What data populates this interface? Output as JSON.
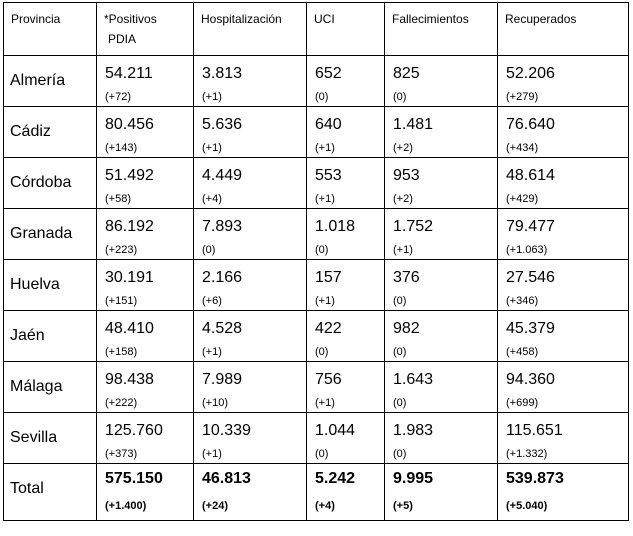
{
  "headers": {
    "provincia": "Provincia",
    "positivos_1": "*Positivos",
    "positivos_2": "PDIA",
    "hospitalizacion": "Hospitalización",
    "uci": "UCI",
    "fallecimientos": "Fallecimientos",
    "recuperados": "Recuperados"
  },
  "rows": [
    {
      "provincia": "Almería",
      "positivos": "54.211",
      "positivos_d": "(+72)",
      "hosp": "3.813",
      "hosp_d": "(+1)",
      "uci": "652",
      "uci_d": "(0)",
      "fall": "825",
      "fall_d": "(0)",
      "rec": "52.206",
      "rec_d": "(+279)"
    },
    {
      "provincia": "Cádiz",
      "positivos": "80.456",
      "positivos_d": "(+143)",
      "hosp": "5.636",
      "hosp_d": "(+1)",
      "uci": "640",
      "uci_d": "(+1)",
      "fall": "1.481",
      "fall_d": "(+2)",
      "rec": "76.640",
      "rec_d": "(+434)"
    },
    {
      "provincia": "Córdoba",
      "positivos": "51.492",
      "positivos_d": "(+58)",
      "hosp": "4.449",
      "hosp_d": "(+4)",
      "uci": "553",
      "uci_d": "(+1)",
      "fall": "953",
      "fall_d": "(+2)",
      "rec": "48.614",
      "rec_d": "(+429)"
    },
    {
      "provincia": "Granada",
      "positivos": "86.192",
      "positivos_d": "(+223)",
      "hosp": "7.893",
      "hosp_d": "(0)",
      "uci": "1.018",
      "uci_d": "(0)",
      "fall": "1.752",
      "fall_d": "(+1)",
      "rec": "79.477",
      "rec_d": "(+1.063)"
    },
    {
      "provincia": "Huelva",
      "positivos": "30.191",
      "positivos_d": "(+151)",
      "hosp": "2.166",
      "hosp_d": "(+6)",
      "uci": "157",
      "uci_d": "(+1)",
      "fall": "376",
      "fall_d": "(0)",
      "rec": "27.546",
      "rec_d": "(+346)"
    },
    {
      "provincia": "Jaén",
      "positivos": "48.410",
      "positivos_d": "(+158)",
      "hosp": "4.528",
      "hosp_d": "(+1)",
      "uci": "422",
      "uci_d": "(0)",
      "fall": "982",
      "fall_d": "(0)",
      "rec": "45.379",
      "rec_d": "(+458)"
    },
    {
      "provincia": "Málaga",
      "positivos": "98.438",
      "positivos_d": "(+222)",
      "hosp": "7.989",
      "hosp_d": "(+10)",
      "uci": "756",
      "uci_d": "(+1)",
      "fall": "1.643",
      "fall_d": "(0)",
      "rec": "94.360",
      "rec_d": "(+699)"
    },
    {
      "provincia": "Sevilla",
      "positivos": "125.760",
      "positivos_d": "(+373)",
      "hosp": "10.339",
      "hosp_d": "(+1)",
      "uci": "1.044",
      "uci_d": "(0)",
      "fall": "1.983",
      "fall_d": "(0)",
      "rec": "115.651",
      "rec_d": "(+1.332)"
    }
  ],
  "total": {
    "provincia": "Total",
    "positivos": "575.150",
    "positivos_d": "(+1.400)",
    "hosp": "46.813",
    "hosp_d": "(+24)",
    "uci": "5.242",
    "uci_d": "(+4)",
    "fall": "9.995",
    "fall_d": "(+5)",
    "rec": "539.873",
    "rec_d": "(+5.040)"
  }
}
